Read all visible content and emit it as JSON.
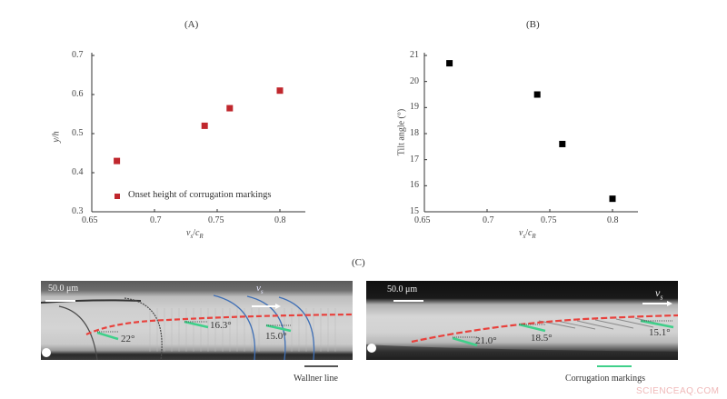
{
  "chart_data": [
    {
      "panel": "(A)",
      "type": "scatter",
      "title": "(A)",
      "xlabel": "v_s/c_R",
      "ylabel": "y/h",
      "xlim": [
        0.65,
        0.82
      ],
      "ylim": [
        0.3,
        0.7
      ],
      "xticks": [
        "0.65",
        "0.7",
        "0.75",
        "0.8"
      ],
      "yticks": [
        "0.3",
        "0.4",
        "0.5",
        "0.6",
        "0.7"
      ],
      "grid": false,
      "legend_position": "lower right",
      "series": [
        {
          "name": "Onset height of corrugation markings",
          "color": "#c0272d",
          "marker": "square",
          "x": [
            0.67,
            0.74,
            0.76,
            0.8
          ],
          "y": [
            0.43,
            0.52,
            0.565,
            0.61
          ]
        }
      ]
    },
    {
      "panel": "(B)",
      "type": "scatter",
      "title": "(B)",
      "xlabel": "v_s/c_R",
      "ylabel": "Tilt angle (°)",
      "xlim": [
        0.65,
        0.82
      ],
      "ylim": [
        15,
        21
      ],
      "xticks": [
        "0.65",
        "0.7",
        "0.75",
        "0.8"
      ],
      "yticks": [
        "15",
        "16",
        "17",
        "18",
        "19",
        "20",
        "21"
      ],
      "grid": false,
      "series": [
        {
          "name": "Tilt angle",
          "color": "#000000",
          "marker": "square",
          "x": [
            0.67,
            0.74,
            0.76,
            0.8
          ],
          "y": [
            20.7,
            19.5,
            17.6,
            15.5
          ]
        }
      ]
    }
  ],
  "panelA": {
    "label": "(A)",
    "ylabel_main": "y/h",
    "xlabel_v": "v",
    "xlabel_s": "s",
    "xlabel_slash": "/",
    "xlabel_c": "c",
    "xlabel_R": "R",
    "legend": "Onset height of corrugation markings",
    "yticks": [
      "0.7",
      "0.6",
      "0.5",
      "0.4",
      "0.3"
    ],
    "xticks": [
      "0.65",
      "0.7",
      "0.75",
      "0.8"
    ]
  },
  "panelB": {
    "label": "(B)",
    "ylabel_main": "Tilt angle (°)",
    "xlabel_v": "v",
    "xlabel_s": "s",
    "xlabel_slash": "/",
    "xlabel_c": "c",
    "xlabel_R": "R",
    "yticks": [
      "21",
      "20",
      "19",
      "18",
      "17",
      "16",
      "15"
    ],
    "xticks": [
      "0.65",
      "0.7",
      "0.75",
      "0.8"
    ]
  },
  "panelC": {
    "label": "(C)",
    "left": {
      "scale_bar": "50.0 μm",
      "velocity_label": "v",
      "velocity_sub": "s",
      "angles": [
        "22°",
        "16.3°",
        "15.0°"
      ],
      "legend_caption": "Wallner line",
      "legend_color": "#555555"
    },
    "right": {
      "scale_bar": "50.0 μm",
      "velocity_label": "v",
      "velocity_sub": "s",
      "angles": [
        "21.0°",
        "18.5°",
        "15.1°"
      ],
      "legend_caption": "Corrugation markings",
      "legend_color": "#3fd08a"
    },
    "colors": {
      "dashed_line": "#e8413c",
      "wallner_blue": "#3f6fb5",
      "wallner_dark": "#555555",
      "corrugation_green": "#3fd08a"
    }
  },
  "watermark": "SCIENCEAQ.COM"
}
